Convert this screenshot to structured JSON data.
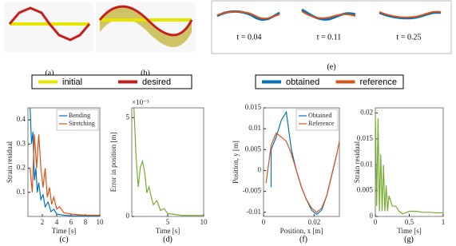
{
  "captions": {
    "a": "(a)",
    "b": "(b)",
    "c": "(c)",
    "d": "(d)",
    "e": "(e)",
    "f": "(f)",
    "g": "(g)"
  },
  "e_times": [
    "t = 0.04",
    "t = 0.11",
    "t = 0.25"
  ],
  "legends": [
    {
      "items": [
        {
          "name": "initial",
          "color": "#e5e500"
        },
        {
          "name": "desired",
          "color": "#c81e1e"
        }
      ]
    },
    {
      "items": [
        {
          "name": "obtained",
          "color": "#0072bd"
        },
        {
          "name": "reference",
          "color": "#d95319"
        }
      ]
    }
  ],
  "chart_data": [
    {
      "type": "line",
      "xlabel": "Time [s]",
      "ylabel": "Strain residual",
      "xlim": [
        0,
        10
      ],
      "ylim": [
        0,
        0.45
      ],
      "xticks": [
        2,
        4,
        6,
        8,
        10
      ],
      "yticks": [
        0.1,
        0.2,
        0.3,
        0.4
      ],
      "legend": "upper right",
      "series": [
        {
          "name": "Bending",
          "color": "#0072bd",
          "x": [
            0.3,
            0.5,
            0.7,
            0.9,
            1.1,
            1.3,
            1.5,
            1.8,
            2.1,
            2.4,
            2.8,
            3.2,
            3.6,
            4,
            5,
            6,
            8,
            10
          ],
          "values": [
            0.45,
            0.3,
            0.35,
            0.15,
            0.2,
            0.1,
            0.14,
            0.07,
            0.09,
            0.04,
            0.06,
            0.02,
            0.03,
            0.01,
            0.005,
            0.003,
            0.002,
            0.002
          ]
        },
        {
          "name": "Stretching",
          "color": "#d95319",
          "x": [
            0.3,
            0.6,
            0.9,
            1.2,
            1.5,
            1.8,
            2.1,
            2.4,
            2.7,
            3,
            3.3,
            3.6,
            4,
            4.4,
            5,
            6,
            8,
            10
          ],
          "values": [
            0.2,
            0.1,
            0.34,
            0.2,
            0.34,
            0.2,
            0.12,
            0.2,
            0.08,
            0.12,
            0.05,
            0.08,
            0.03,
            0.04,
            0.015,
            0.01,
            0.005,
            0.005
          ]
        }
      ]
    },
    {
      "type": "line",
      "xlabel": "Time [s]",
      "ylabel": "Error in position [m]",
      "y_multiplier": "×10⁻³",
      "xlim": [
        0,
        10
      ],
      "ylim": [
        0,
        5.5
      ],
      "xticks": [
        5,
        10
      ],
      "yticks": [
        0,
        5
      ],
      "series": [
        {
          "color": "#77ac30",
          "x": [
            0.3,
            0.6,
            0.9,
            1.2,
            1.5,
            1.8,
            2.1,
            2.4,
            2.7,
            3,
            3.5,
            4,
            4.5,
            5,
            6,
            7,
            8,
            10
          ],
          "values": [
            5.5,
            3,
            1.5,
            2.5,
            2.8,
            2.2,
            1.2,
            1.5,
            1,
            0.6,
            0.8,
            0.3,
            0.4,
            0.15,
            0.1,
            0.05,
            0.05,
            0.05
          ]
        }
      ]
    },
    {
      "type": "line",
      "xlabel": "Position, x [m]",
      "ylabel": "Position, y [m]",
      "xlim": [
        0,
        0.03
      ],
      "ylim": [
        -0.011,
        0.015
      ],
      "xticks": [
        0,
        0.02
      ],
      "yticks": [
        -0.01,
        -0.005,
        0,
        0.005,
        0.01,
        0.015
      ],
      "legend": "upper right",
      "series": [
        {
          "name": "Obtained",
          "color": "#0072bd",
          "x": [
            0.003,
            0.003,
            0.005,
            0.007,
            0.009,
            0.011,
            0.013,
            0.015,
            0.017,
            0.019,
            0.021,
            0.023,
            0.025,
            0.027,
            0.029
          ],
          "values": [
            -0.004,
            0.005,
            0.008,
            0.012,
            0.014,
            0.005,
            0,
            -0.004,
            -0.007,
            -0.0095,
            -0.0105,
            -0.0095,
            -0.006,
            -0.001,
            0.004
          ]
        },
        {
          "name": "Reference",
          "color": "#d95319",
          "x": [
            0.001,
            0.003,
            0.005,
            0.007,
            0.009,
            0.011,
            0.013,
            0.015,
            0.017,
            0.019,
            0.021,
            0.023,
            0.025,
            0.027,
            0.029,
            0.03
          ],
          "values": [
            -0.003,
            0.006,
            0.009,
            0.008,
            0.007,
            0.004,
            0,
            -0.004,
            -0.007,
            -0.009,
            -0.01,
            -0.009,
            -0.006,
            -0.001,
            0.004,
            0.007
          ]
        }
      ]
    },
    {
      "type": "line",
      "xlabel": "Time [s]",
      "ylabel": "Strain residual",
      "xlim": [
        0,
        1
      ],
      "ylim": [
        0,
        0.021
      ],
      "xticks": [
        0,
        0.5,
        1
      ],
      "yticks": [
        0,
        0.005,
        0.01,
        0.015,
        0.02
      ],
      "series": [
        {
          "color": "#77ac30",
          "x": [
            0,
            0.02,
            0.04,
            0.06,
            0.08,
            0.1,
            0.12,
            0.14,
            0.16,
            0.18,
            0.2,
            0.25,
            0.3,
            0.35,
            0.4,
            0.5,
            0.6,
            0.7,
            0.8,
            0.9,
            1
          ],
          "values": [
            0.02,
            0.002,
            0.019,
            0.001,
            0.012,
            0.001,
            0.01,
            0.001,
            0.006,
            0.001,
            0.004,
            0.002,
            0.002,
            0.001,
            0.0005,
            0.001,
            0.001,
            0.0008,
            0.0008,
            0.0007,
            0.0007
          ]
        }
      ]
    }
  ]
}
